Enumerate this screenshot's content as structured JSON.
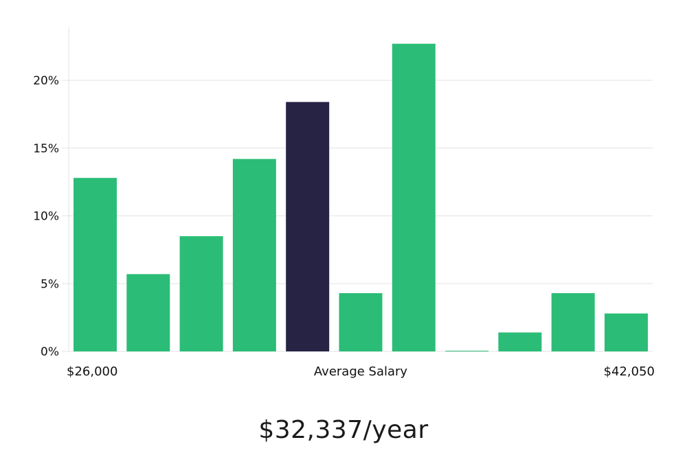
{
  "chart_data": {
    "type": "bar",
    "title": "",
    "xlabel": "Average Salary",
    "x_range_labels": [
      "$26,000",
      "$42,050"
    ],
    "ylabel": "",
    "ylim": [
      0,
      24
    ],
    "yticks": [
      0,
      5,
      10,
      15,
      20
    ],
    "ytick_labels": [
      "0%",
      "5%",
      "10%",
      "15%",
      "20%"
    ],
    "values": [
      12.8,
      5.7,
      8.5,
      14.2,
      18.4,
      4.3,
      22.7,
      0.05,
      1.4,
      4.3,
      2.8
    ],
    "highlight_index": 4,
    "grid": true,
    "colors": {
      "bar": "#2bbd77",
      "highlight": "#262345",
      "grid": "#e3e3e3"
    }
  },
  "summary": {
    "salary_text": "$32,337/year"
  }
}
